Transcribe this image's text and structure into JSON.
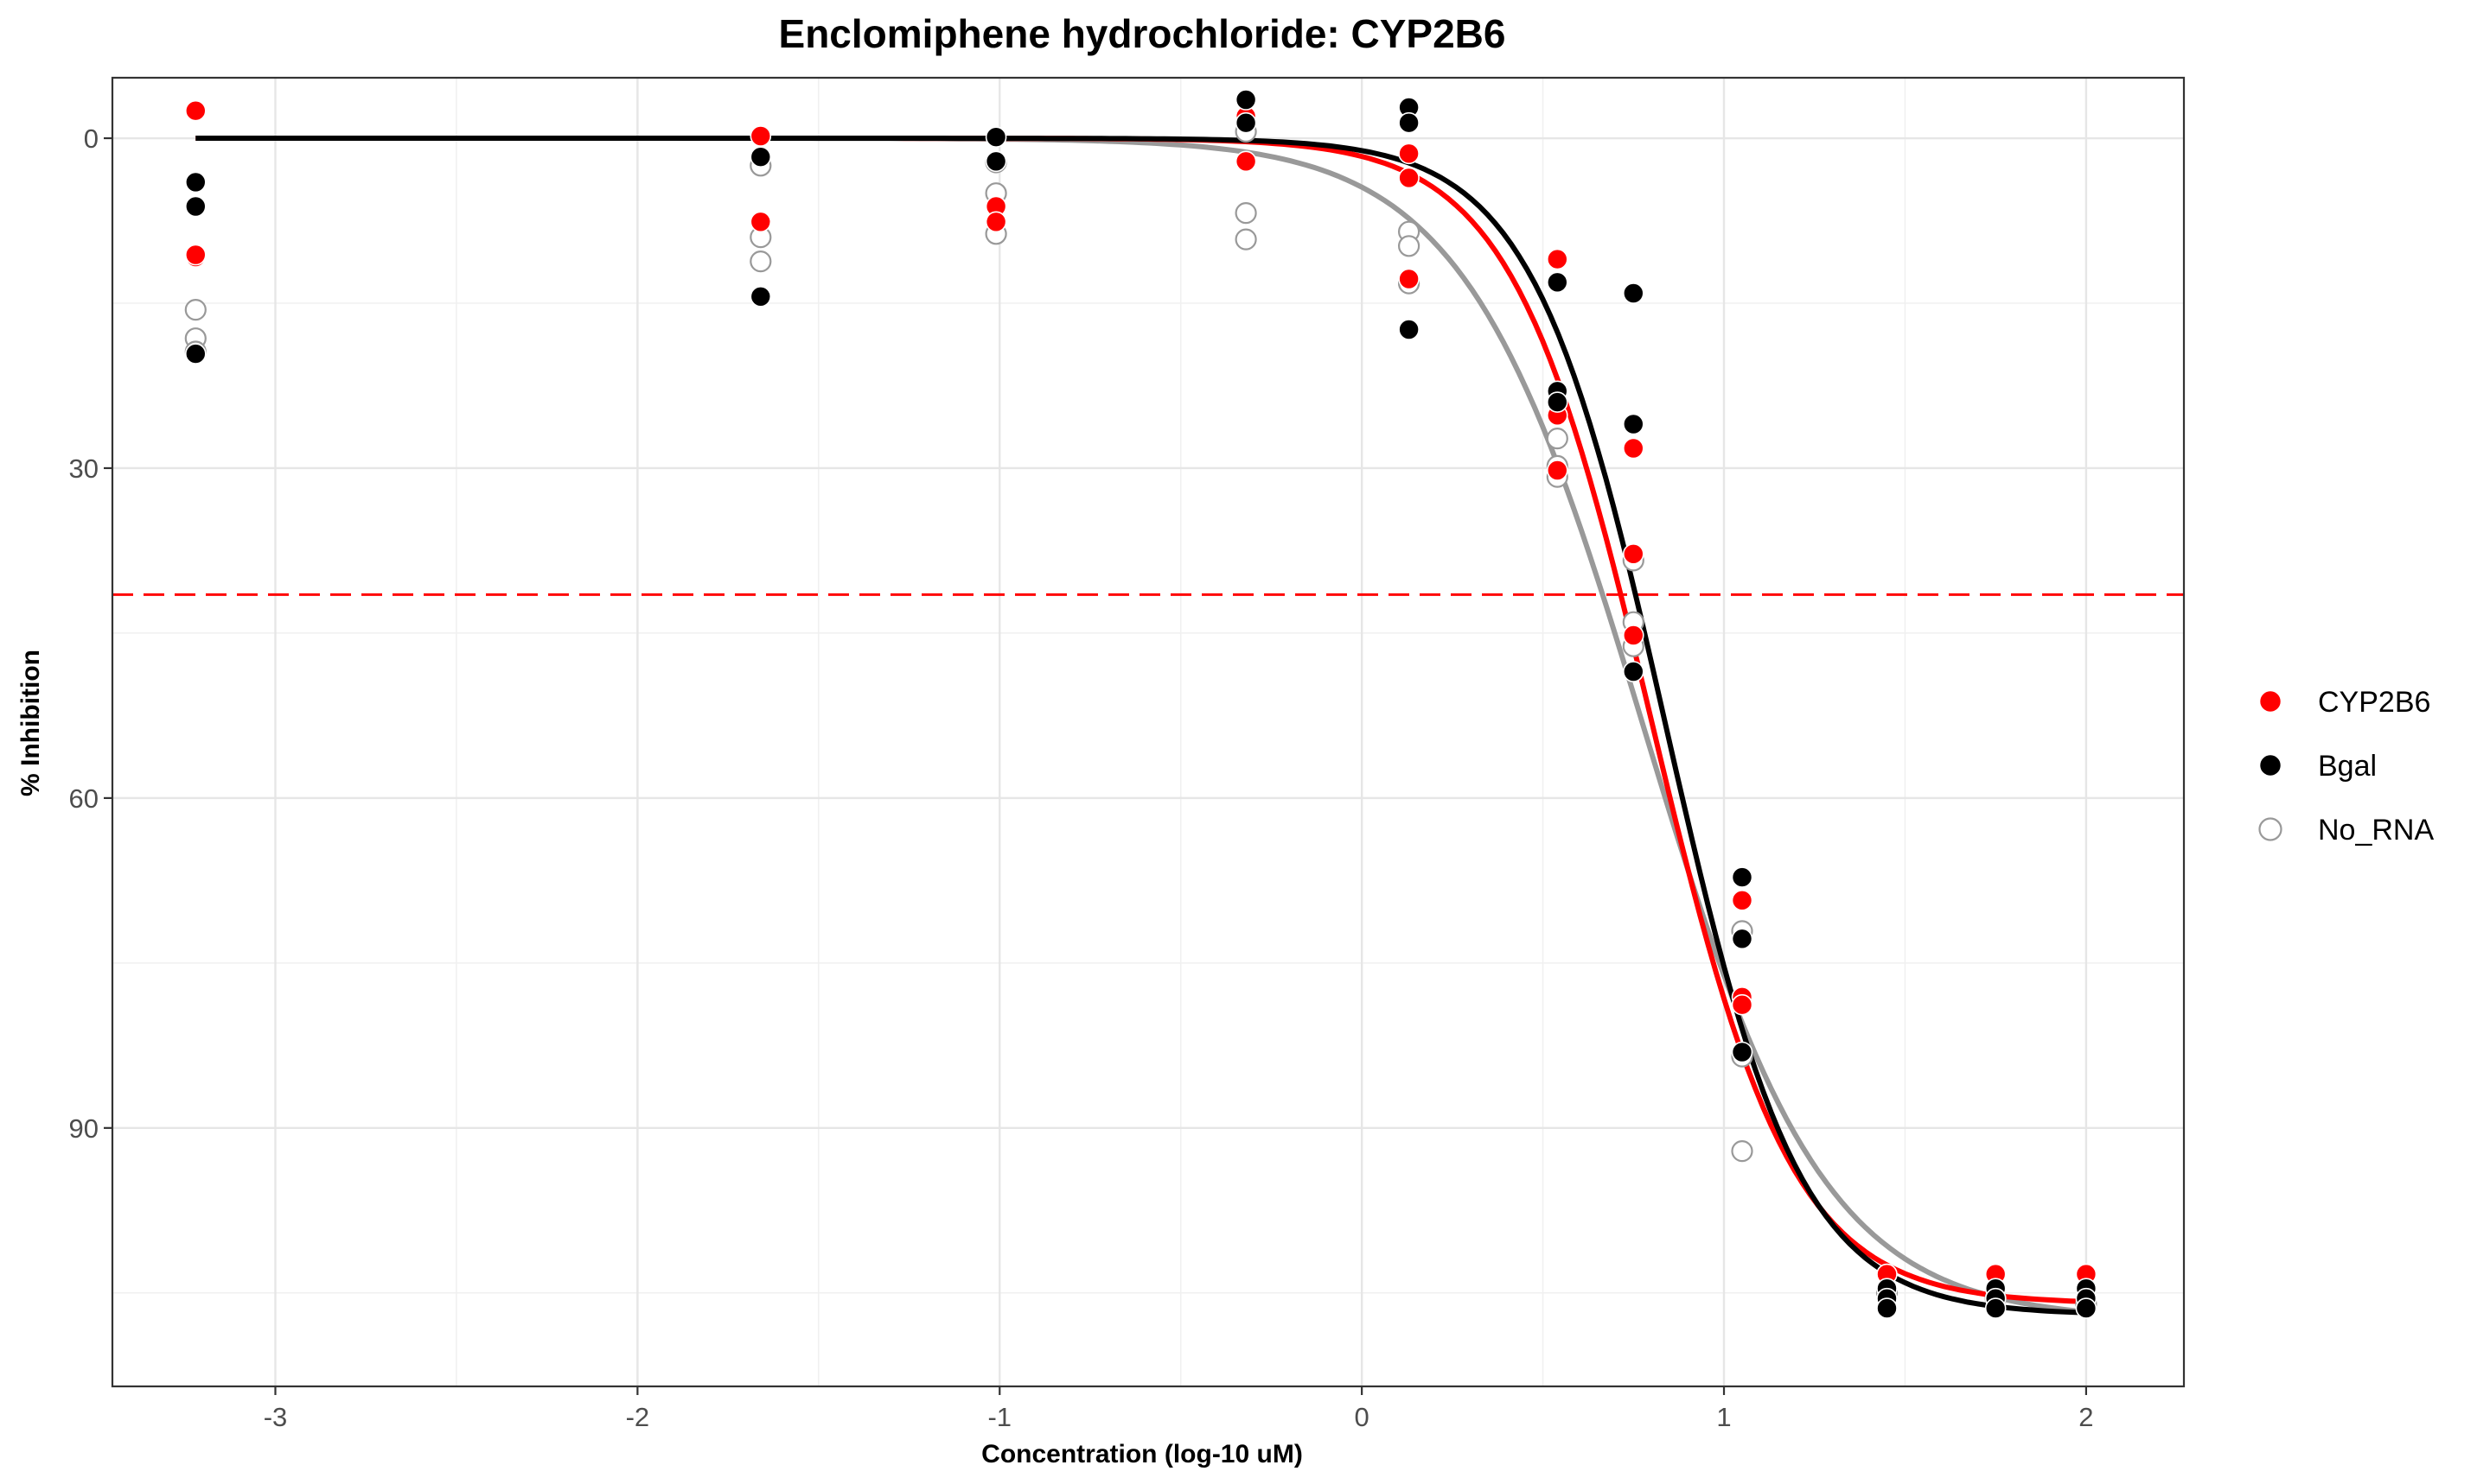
{
  "chart_data": {
    "type": "scatter",
    "title": "Enclomiphene hydrochloride: CYP2B6",
    "xlabel": "Concentration (log-10 uM)",
    "ylabel": "% Inhibition",
    "xlim": [
      -3.45,
      2.27
    ],
    "ylim": [
      113.5,
      -5.5
    ],
    "y_reversed": true,
    "x_ticks": [
      -3,
      -2,
      -1,
      0,
      1,
      2
    ],
    "y_ticks": [
      0,
      30,
      60,
      90
    ],
    "x_tick_labels": [
      "-3",
      "-2",
      "-1",
      "0",
      "1",
      "2"
    ],
    "y_tick_labels": [
      "0",
      "30",
      "60",
      "90"
    ],
    "grid": true,
    "legend_position": "right",
    "reference_line": {
      "y": 41.5,
      "color": "#ff0000",
      "style": "dashed"
    },
    "series": [
      {
        "name": "CYP2B6",
        "color": "#ff0000",
        "marker": "filled",
        "points": [
          [
            -3.22,
            -2.5
          ],
          [
            -3.22,
            10.8
          ],
          [
            -3.22,
            10.6
          ],
          [
            -1.66,
            -0.2
          ],
          [
            -1.66,
            7.6
          ],
          [
            -1.01,
            6.2
          ],
          [
            -1.01,
            7.6
          ],
          [
            -0.32,
            -2.0
          ],
          [
            -0.32,
            2.1
          ],
          [
            0.13,
            1.4
          ],
          [
            0.13,
            3.6
          ],
          [
            0.13,
            12.8
          ],
          [
            0.54,
            11.0
          ],
          [
            0.54,
            25.2
          ],
          [
            0.54,
            30.2
          ],
          [
            0.75,
            28.2
          ],
          [
            0.75,
            37.8
          ],
          [
            0.75,
            45.2
          ],
          [
            1.05,
            69.3
          ],
          [
            1.05,
            78.1
          ],
          [
            1.05,
            78.8
          ],
          [
            1.45,
            103.3
          ],
          [
            1.75,
            103.3
          ],
          [
            2.0,
            103.3
          ]
        ],
        "curve": {
          "top": 0.0,
          "bottom": 106.0,
          "log_ic50": 0.8,
          "hill": 2.25
        }
      },
      {
        "name": "Bgal",
        "color": "#000000",
        "marker": "filled",
        "points": [
          [
            -3.22,
            4.0
          ],
          [
            -3.22,
            6.2
          ],
          [
            -3.22,
            19.6
          ],
          [
            -1.66,
            1.7
          ],
          [
            -1.66,
            14.4
          ],
          [
            -1.01,
            -0.1
          ],
          [
            -1.01,
            2.1
          ],
          [
            -0.32,
            -3.5
          ],
          [
            -0.32,
            -1.4
          ],
          [
            0.13,
            -2.8
          ],
          [
            0.13,
            -1.4
          ],
          [
            0.13,
            17.4
          ],
          [
            0.54,
            13.1
          ],
          [
            0.54,
            23.0
          ],
          [
            0.54,
            24.0
          ],
          [
            0.75,
            14.1
          ],
          [
            0.75,
            26.0
          ],
          [
            0.75,
            48.5
          ],
          [
            1.05,
            67.2
          ],
          [
            1.05,
            72.8
          ],
          [
            1.05,
            83.1
          ],
          [
            1.45,
            104.6
          ],
          [
            1.45,
            105.5
          ],
          [
            1.45,
            106.4
          ],
          [
            1.75,
            104.6
          ],
          [
            1.75,
            105.5
          ],
          [
            1.75,
            106.4
          ],
          [
            2.0,
            104.6
          ],
          [
            2.0,
            105.5
          ],
          [
            2.0,
            106.4
          ]
        ],
        "curve": {
          "top": 0.0,
          "bottom": 107.0,
          "log_ic50": 0.84,
          "hill": 2.35
        }
      },
      {
        "name": "No_RNA",
        "color": "#999999",
        "marker": "open",
        "points": [
          [
            -3.22,
            15.6
          ],
          [
            -3.22,
            18.2
          ],
          [
            -3.22,
            19.4
          ],
          [
            -1.66,
            2.5
          ],
          [
            -1.66,
            9.0
          ],
          [
            -1.66,
            11.2
          ],
          [
            -1.01,
            2.2
          ],
          [
            -1.01,
            5.0
          ],
          [
            -1.01,
            8.7
          ],
          [
            -0.32,
            -0.6
          ],
          [
            -0.32,
            6.8
          ],
          [
            -0.32,
            9.2
          ],
          [
            0.13,
            8.5
          ],
          [
            0.13,
            9.8
          ],
          [
            0.13,
            13.2
          ],
          [
            0.54,
            27.3
          ],
          [
            0.54,
            29.8
          ],
          [
            0.54,
            30.8
          ],
          [
            0.75,
            38.4
          ],
          [
            0.75,
            44.0
          ],
          [
            0.75,
            46.2
          ],
          [
            1.05,
            72.1
          ],
          [
            1.05,
            83.5
          ],
          [
            1.05,
            92.1
          ],
          [
            1.45,
            105.0
          ],
          [
            1.75,
            105.5
          ],
          [
            2.0,
            106.0
          ]
        ],
        "curve": {
          "top": 0.0,
          "bottom": 107.5,
          "log_ic50": 0.78,
          "hill": 1.75
        }
      }
    ]
  }
}
